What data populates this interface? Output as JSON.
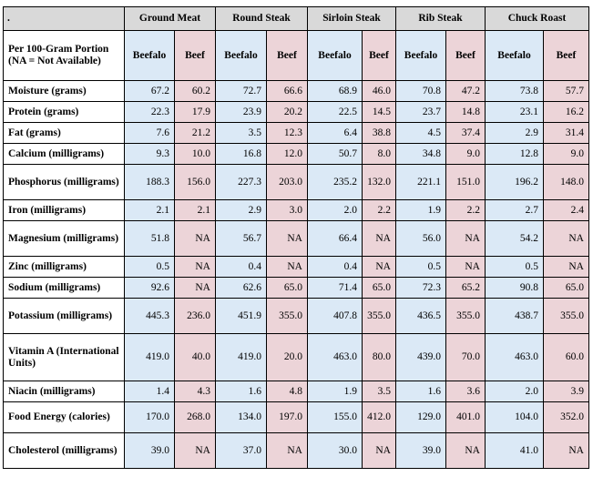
{
  "corner": ".",
  "cuts": [
    "Ground Meat",
    "Round Steak",
    "Sirloin Steak",
    "Rib Steak",
    "Chuck Roast"
  ],
  "portion_label": "Per 100-Gram Portion (NA = Not Available)",
  "sub_beefalo": "Beefalo",
  "sub_beef": "Beef",
  "colors": {
    "header": "#d9d9d9",
    "beefalo": "#dbe9f6",
    "beef": "#ecd4d8"
  },
  "rows": [
    {
      "label": "Moisture (grams)",
      "values": [
        "67.2",
        "60.2",
        "72.7",
        "66.6",
        "68.9",
        "46.0",
        "70.8",
        "47.2",
        "73.8",
        "57.7"
      ]
    },
    {
      "label": "Protein (grams)",
      "values": [
        "22.3",
        "17.9",
        "23.9",
        "20.2",
        "22.5",
        "14.5",
        "23.7",
        "14.8",
        "23.1",
        "16.2"
      ]
    },
    {
      "label": "Fat (grams)",
      "values": [
        "7.6",
        "21.2",
        "3.5",
        "12.3",
        "6.4",
        "38.8",
        "4.5",
        "37.4",
        "2.9",
        "31.4"
      ]
    },
    {
      "label": "Calcium (milligrams)",
      "values": [
        "9.3",
        "10.0",
        "16.8",
        "12.0",
        "50.7",
        "8.0",
        "34.8",
        "9.0",
        "12.8",
        "9.0"
      ]
    },
    {
      "label": "Phosphorus (milligrams)",
      "values": [
        "188.3",
        "156.0",
        "227.3",
        "203.0",
        "235.2",
        "132.0",
        "221.1",
        "151.0",
        "196.2",
        "148.0"
      ]
    },
    {
      "label": "Iron (milligrams)",
      "values": [
        "2.1",
        "2.1",
        "2.9",
        "3.0",
        "2.0",
        "2.2",
        "1.9",
        "2.2",
        "2.7",
        "2.4"
      ]
    },
    {
      "label": "Magnesium (milligrams)",
      "values": [
        "51.8",
        "NA",
        "56.7",
        "NA",
        "66.4",
        "NA",
        "56.0",
        "NA",
        "54.2",
        "NA"
      ]
    },
    {
      "label": "Zinc (milligrams)",
      "values": [
        "0.5",
        "NA",
        "0.4",
        "NA",
        "0.4",
        "NA",
        "0.5",
        "NA",
        "0.5",
        "NA"
      ]
    },
    {
      "label": "Sodium (milligrams)",
      "values": [
        "92.6",
        "NA",
        "62.6",
        "65.0",
        "71.4",
        "65.0",
        "72.3",
        "65.2",
        "90.8",
        "65.0"
      ]
    },
    {
      "label": "Potassium (milligrams)",
      "values": [
        "445.3",
        "236.0",
        "451.9",
        "355.0",
        "407.8",
        "355.0",
        "436.5",
        "355.0",
        "438.7",
        "355.0"
      ]
    },
    {
      "label": "Vitamin A (International Units)",
      "values": [
        "419.0",
        "40.0",
        "419.0",
        "20.0",
        "463.0",
        "80.0",
        "439.0",
        "70.0",
        "463.0",
        "60.0"
      ]
    },
    {
      "label": "Niacin (milligrams)",
      "values": [
        "1.4",
        "4.3",
        "1.6",
        "4.8",
        "1.9",
        "3.5",
        "1.6",
        "3.6",
        "2.0",
        "3.9"
      ]
    },
    {
      "label": "Food Energy (calories)",
      "values": [
        "170.0",
        "268.0",
        "134.0",
        "197.0",
        "155.0",
        "412.0",
        "129.0",
        "401.0",
        "104.0",
        "352.0"
      ]
    },
    {
      "label": "Cholesterol (milligrams)",
      "values": [
        "39.0",
        "NA",
        "37.0",
        "NA",
        "30.0",
        "NA",
        "39.0",
        "NA",
        "41.0",
        "NA"
      ]
    }
  ]
}
